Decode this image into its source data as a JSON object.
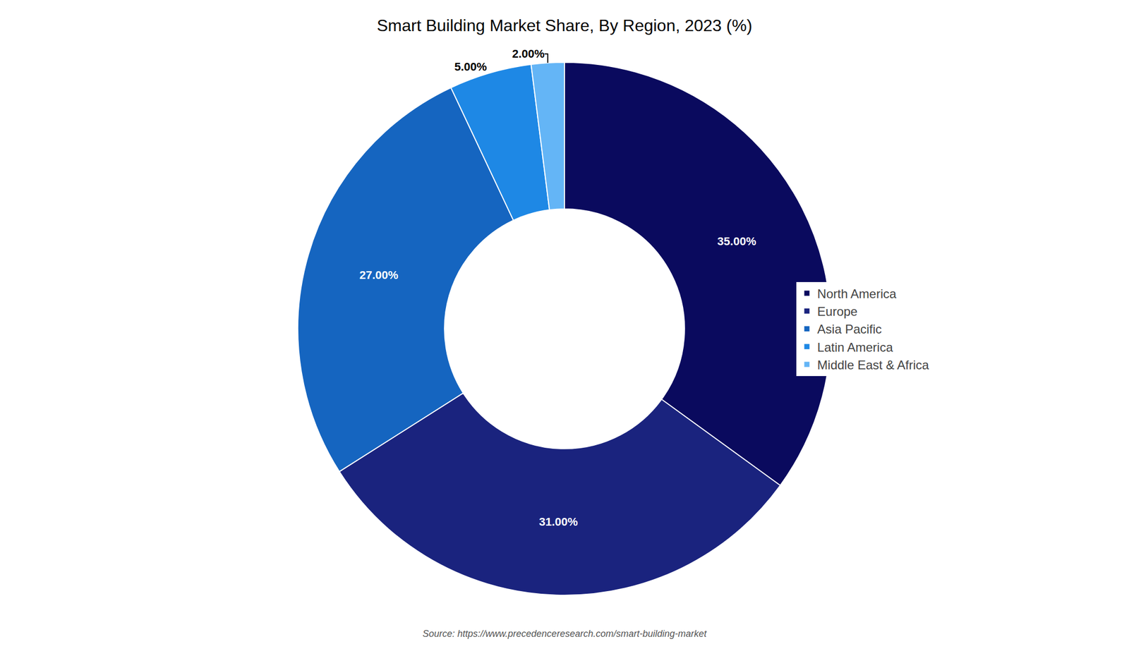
{
  "chart_data": {
    "type": "donut",
    "title": "Smart Building Market Share, By Region, 2023 (%)",
    "categories": [
      "North America",
      "Europe",
      "Asia Pacific",
      "Latin America",
      "Middle East & Africa"
    ],
    "values": [
      35.0,
      31.0,
      27.0,
      5.0,
      2.0
    ],
    "value_labels": [
      "35.00%",
      "31.00%",
      "27.00%",
      "5.00%",
      "2.00%"
    ],
    "colors": [
      "#0a0a5e",
      "#1a237e",
      "#1565c0",
      "#1e88e5",
      "#64b5f6"
    ],
    "data_labels": true,
    "legend": "right",
    "annotations": [
      "Source: https://www.precedenceresearch.com/smart-building-market"
    ]
  }
}
